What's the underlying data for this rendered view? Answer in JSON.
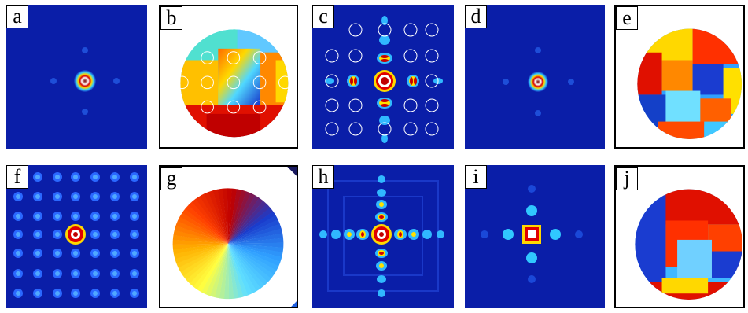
{
  "colors": {
    "background": "#0a1ea8",
    "ring": "#c80000",
    "accent": "#ffff00"
  },
  "panels": [
    {
      "id": "a",
      "label": "a",
      "kind": "single-spot"
    },
    {
      "id": "b",
      "label": "b",
      "kind": "phase-grid"
    },
    {
      "id": "c",
      "label": "c",
      "kind": "cross-pattern-grid"
    },
    {
      "id": "d",
      "label": "d",
      "kind": "single-spot"
    },
    {
      "id": "e",
      "label": "e",
      "kind": "phase-patches"
    },
    {
      "id": "f",
      "label": "f",
      "kind": "spot-array"
    },
    {
      "id": "g",
      "label": "g",
      "kind": "phase-vortex"
    },
    {
      "id": "h",
      "label": "h",
      "kind": "cross-pattern"
    },
    {
      "id": "i",
      "label": "i",
      "kind": "small-cross"
    },
    {
      "id": "j",
      "label": "j",
      "kind": "phase-blocks"
    }
  ]
}
